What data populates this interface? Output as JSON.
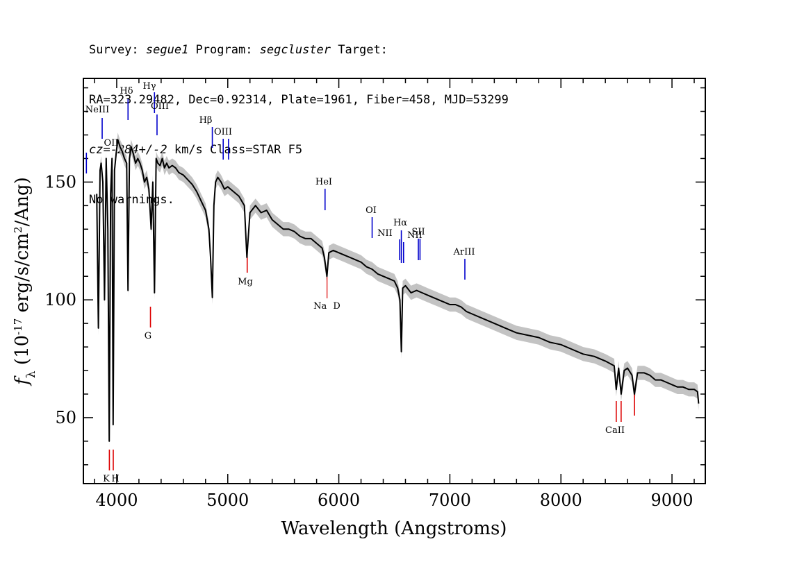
{
  "header": {
    "survey_label": "Survey: ",
    "survey": "segue1",
    "program_label": " Program: ",
    "program": "segcluster",
    "target_label": " Target:",
    "line2": "RA=323.29482, Dec=0.92314, Plate=1961, Fiber=458, MJD=53299",
    "cz_label": "cz=",
    "cz": "-284+/-2",
    "cz_rest": " km/s Class=STAR F5",
    "line4": "No warnings."
  },
  "chart_data": {
    "type": "line",
    "xlabel": "Wavelength (Angstroms)",
    "ylabel": "f_λ (10^-17 erg/s/cm^2/Ang)",
    "xlim": [
      3700,
      9300
    ],
    "ylim": [
      22,
      194
    ],
    "x_ticks": [
      4000,
      5000,
      6000,
      7000,
      8000,
      9000
    ],
    "y_ticks": [
      50,
      100,
      150
    ],
    "x_tick_labels": [
      "4000",
      "5000",
      "6000",
      "7000",
      "8000",
      "9000"
    ],
    "y_tick_labels": [
      "50",
      "100",
      "150"
    ],
    "grid": false,
    "series": [
      {
        "color": "#000000",
        "error_color": "#b4b4b4",
        "x": [
          3820,
          3835,
          3850,
          3860,
          3875,
          3890,
          3905,
          3920,
          3933,
          3945,
          3958,
          3968,
          3980,
          3995,
          4010,
          4030,
          4050,
          4070,
          4090,
          4102,
          4115,
          4130,
          4150,
          4170,
          4190,
          4210,
          4230,
          4250,
          4270,
          4290,
          4310,
          4325,
          4340,
          4355,
          4370,
          4390,
          4410,
          4430,
          4450,
          4470,
          4500,
          4530,
          4560,
          4600,
          4640,
          4680,
          4720,
          4760,
          4800,
          4830,
          4845,
          4861,
          4875,
          4890,
          4910,
          4940,
          4970,
          5000,
          5050,
          5100,
          5150,
          5172,
          5200,
          5250,
          5300,
          5350,
          5400,
          5450,
          5500,
          5550,
          5600,
          5650,
          5700,
          5750,
          5800,
          5850,
          5870,
          5893,
          5910,
          5950,
          6000,
          6050,
          6100,
          6150,
          6200,
          6250,
          6300,
          6350,
          6400,
          6450,
          6500,
          6530,
          6550,
          6563,
          6575,
          6600,
          6650,
          6700,
          6750,
          6800,
          6850,
          6900,
          6950,
          7000,
          7050,
          7100,
          7150,
          7200,
          7300,
          7400,
          7500,
          7600,
          7700,
          7800,
          7900,
          8000,
          8100,
          8200,
          8300,
          8400,
          8480,
          8498,
          8520,
          8542,
          8570,
          8600,
          8640,
          8662,
          8690,
          8750,
          8800,
          8850,
          8900,
          8950,
          9000,
          9050,
          9100,
          9150,
          9200,
          9230,
          9240
        ],
        "y": [
          145,
          88,
          155,
          158,
          150,
          100,
          160,
          130,
          40,
          145,
          160,
          47,
          155,
          162,
          168,
          165,
          163,
          160,
          158,
          104,
          160,
          165,
          162,
          158,
          160,
          158,
          155,
          150,
          152,
          147,
          130,
          150,
          103,
          160,
          158,
          157,
          160,
          156,
          158,
          156,
          157,
          156,
          154,
          153,
          151,
          149,
          146,
          142,
          138,
          130,
          118,
          101,
          140,
          150,
          152,
          150,
          147,
          148,
          146,
          144,
          140,
          118,
          137,
          140,
          137,
          138,
          134,
          132,
          130,
          130,
          129,
          127,
          126,
          126,
          124,
          122,
          118,
          110,
          120,
          121,
          120,
          119,
          118,
          117,
          116,
          114,
          113,
          111,
          110,
          109,
          108,
          105,
          100,
          78,
          105,
          106,
          103,
          104,
          103,
          102,
          101,
          100,
          99,
          98,
          98,
          97,
          95,
          94,
          92,
          90,
          88,
          86,
          85,
          84,
          82,
          81,
          79,
          77,
          76,
          74,
          72,
          62,
          71,
          60,
          70,
          71,
          68,
          60,
          69,
          69,
          68,
          66,
          66,
          65,
          64,
          63,
          63,
          62,
          62,
          61,
          56
        ]
      }
    ],
    "emission_lines": [
      {
        "label": "OII",
        "wavelength": 3727
      },
      {
        "label": "NeIII",
        "wavelength": 3869
      },
      {
        "label": "Hδ",
        "wavelength": 4102
      },
      {
        "label": "Hγ",
        "wavelength": 4340
      },
      {
        "label": "OIII",
        "wavelength": 4363
      },
      {
        "label": "Hβ",
        "wavelength": 4861
      },
      {
        "label": "OIII",
        "wavelength": 4959
      },
      {
        "label": "",
        "wavelength": 5007
      },
      {
        "label": "HeI",
        "wavelength": 5876
      },
      {
        "label": "OI",
        "wavelength": 6300
      },
      {
        "label": "NII",
        "wavelength": 6548
      },
      {
        "label": "Hα",
        "wavelength": 6563
      },
      {
        "label": "NII",
        "wavelength": 6583
      },
      {
        "label": "SII",
        "wavelength": 6716
      },
      {
        "label": "",
        "wavelength": 6731
      },
      {
        "label": "ArIII",
        "wavelength": 7135
      }
    ],
    "absorption_lines": [
      {
        "label": "K",
        "wavelength": 3934
      },
      {
        "label": "H",
        "wavelength": 3969
      },
      {
        "label": "G",
        "wavelength": 4304
      },
      {
        "label": "Mg",
        "wavelength": 5175
      },
      {
        "label": "Na",
        "wavelength": 5894
      },
      {
        "label": "D",
        "wavelength": 5894
      },
      {
        "label": "CaII",
        "wavelength": 8498
      },
      {
        "label": "",
        "wavelength": 8542
      },
      {
        "label": "",
        "wavelength": 8662
      }
    ],
    "emission_color": "#0000cc",
    "absorption_color": "#dd0000"
  }
}
